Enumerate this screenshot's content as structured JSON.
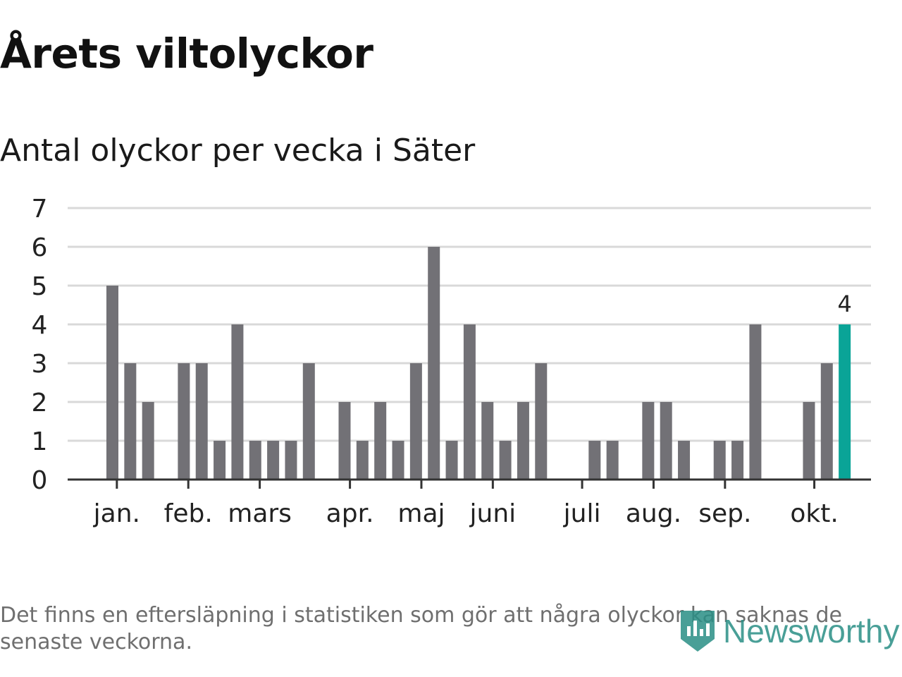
{
  "title": "Årets viltolyckor",
  "subtitle": "Antal olyckor per vecka i Säter",
  "footnote": "Det finns en eftersläpning i statistiken som gör att några olyckor kan saknas de senaste veckorna.",
  "logo": {
    "text": "Newsworthy",
    "icon": "newsworthy-logo-icon"
  },
  "colors": {
    "bar": "#727176",
    "highlight": "#0aa497",
    "grid": "#d9d9d9",
    "axis": "#333333",
    "text": "#222222"
  },
  "chart_data": {
    "type": "bar",
    "title": "Antal olyckor per vecka i Säter",
    "xlabel": "",
    "ylabel": "",
    "ylim": [
      0,
      7
    ],
    "yticks": [
      0,
      1,
      2,
      3,
      4,
      5,
      6,
      7
    ],
    "grid": true,
    "week_start": 1,
    "week_end": 43,
    "weeks": [
      2,
      3,
      4,
      6,
      7,
      8,
      9,
      10,
      11,
      12,
      13,
      15,
      16,
      17,
      18,
      19,
      20,
      21,
      22,
      23,
      24,
      25,
      26,
      27,
      29,
      30,
      32,
      33,
      34,
      36,
      37,
      38,
      41,
      42,
      43
    ],
    "values": [
      5,
      3,
      2,
      3,
      3,
      1,
      4,
      1,
      1,
      1,
      3,
      2,
      1,
      2,
      1,
      3,
      6,
      1,
      4,
      2,
      1,
      2,
      3,
      0,
      1,
      1,
      2,
      2,
      1,
      1,
      1,
      4,
      2,
      3,
      4
    ],
    "highlight_week": 43,
    "highlight_label": "4",
    "month_labels": [
      {
        "label": "jan.",
        "week": 2.25
      },
      {
        "label": "feb.",
        "week": 6.25
      },
      {
        "label": "mars",
        "week": 10.25
      },
      {
        "label": "apr.",
        "week": 15.3
      },
      {
        "label": "maj",
        "week": 19.3
      },
      {
        "label": "juni",
        "week": 23.3
      },
      {
        "label": "juli",
        "week": 28.3
      },
      {
        "label": "aug.",
        "week": 32.3
      },
      {
        "label": "sep.",
        "week": 36.3
      },
      {
        "label": "okt.",
        "week": 41.3
      }
    ]
  }
}
